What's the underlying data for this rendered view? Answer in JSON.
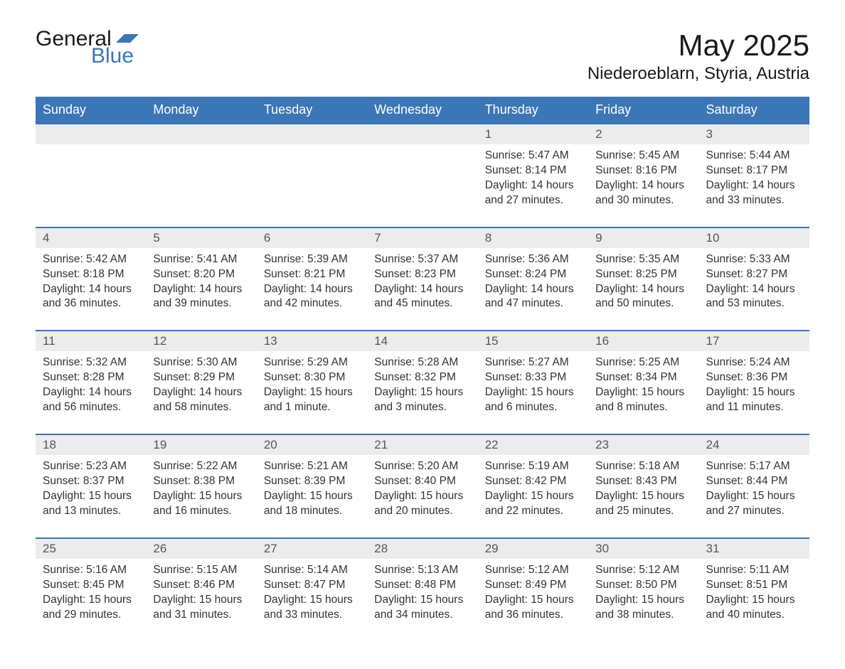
{
  "logo": {
    "text1": "General",
    "text2": "Blue"
  },
  "title": {
    "month": "May 2025",
    "location": "Niederoeblarn, Styria, Austria"
  },
  "colors": {
    "header_bg": "#3b76b7",
    "header_text": "#ffffff",
    "date_row_bg": "#ececec",
    "text": "#333333",
    "logo_blue": "#3b76b7"
  },
  "weekdays": [
    "Sunday",
    "Monday",
    "Tuesday",
    "Wednesday",
    "Thursday",
    "Friday",
    "Saturday"
  ],
  "weeks": [
    {
      "days": [
        {
          "date": "",
          "sunrise": "",
          "sunset": "",
          "daylight": ""
        },
        {
          "date": "",
          "sunrise": "",
          "sunset": "",
          "daylight": ""
        },
        {
          "date": "",
          "sunrise": "",
          "sunset": "",
          "daylight": ""
        },
        {
          "date": "",
          "sunrise": "",
          "sunset": "",
          "daylight": ""
        },
        {
          "date": "1",
          "sunrise": "Sunrise: 5:47 AM",
          "sunset": "Sunset: 8:14 PM",
          "daylight": "Daylight: 14 hours and 27 minutes."
        },
        {
          "date": "2",
          "sunrise": "Sunrise: 5:45 AM",
          "sunset": "Sunset: 8:16 PM",
          "daylight": "Daylight: 14 hours and 30 minutes."
        },
        {
          "date": "3",
          "sunrise": "Sunrise: 5:44 AM",
          "sunset": "Sunset: 8:17 PM",
          "daylight": "Daylight: 14 hours and 33 minutes."
        }
      ]
    },
    {
      "days": [
        {
          "date": "4",
          "sunrise": "Sunrise: 5:42 AM",
          "sunset": "Sunset: 8:18 PM",
          "daylight": "Daylight: 14 hours and 36 minutes."
        },
        {
          "date": "5",
          "sunrise": "Sunrise: 5:41 AM",
          "sunset": "Sunset: 8:20 PM",
          "daylight": "Daylight: 14 hours and 39 minutes."
        },
        {
          "date": "6",
          "sunrise": "Sunrise: 5:39 AM",
          "sunset": "Sunset: 8:21 PM",
          "daylight": "Daylight: 14 hours and 42 minutes."
        },
        {
          "date": "7",
          "sunrise": "Sunrise: 5:37 AM",
          "sunset": "Sunset: 8:23 PM",
          "daylight": "Daylight: 14 hours and 45 minutes."
        },
        {
          "date": "8",
          "sunrise": "Sunrise: 5:36 AM",
          "sunset": "Sunset: 8:24 PM",
          "daylight": "Daylight: 14 hours and 47 minutes."
        },
        {
          "date": "9",
          "sunrise": "Sunrise: 5:35 AM",
          "sunset": "Sunset: 8:25 PM",
          "daylight": "Daylight: 14 hours and 50 minutes."
        },
        {
          "date": "10",
          "sunrise": "Sunrise: 5:33 AM",
          "sunset": "Sunset: 8:27 PM",
          "daylight": "Daylight: 14 hours and 53 minutes."
        }
      ]
    },
    {
      "days": [
        {
          "date": "11",
          "sunrise": "Sunrise: 5:32 AM",
          "sunset": "Sunset: 8:28 PM",
          "daylight": "Daylight: 14 hours and 56 minutes."
        },
        {
          "date": "12",
          "sunrise": "Sunrise: 5:30 AM",
          "sunset": "Sunset: 8:29 PM",
          "daylight": "Daylight: 14 hours and 58 minutes."
        },
        {
          "date": "13",
          "sunrise": "Sunrise: 5:29 AM",
          "sunset": "Sunset: 8:30 PM",
          "daylight": "Daylight: 15 hours and 1 minute."
        },
        {
          "date": "14",
          "sunrise": "Sunrise: 5:28 AM",
          "sunset": "Sunset: 8:32 PM",
          "daylight": "Daylight: 15 hours and 3 minutes."
        },
        {
          "date": "15",
          "sunrise": "Sunrise: 5:27 AM",
          "sunset": "Sunset: 8:33 PM",
          "daylight": "Daylight: 15 hours and 6 minutes."
        },
        {
          "date": "16",
          "sunrise": "Sunrise: 5:25 AM",
          "sunset": "Sunset: 8:34 PM",
          "daylight": "Daylight: 15 hours and 8 minutes."
        },
        {
          "date": "17",
          "sunrise": "Sunrise: 5:24 AM",
          "sunset": "Sunset: 8:36 PM",
          "daylight": "Daylight: 15 hours and 11 minutes."
        }
      ]
    },
    {
      "days": [
        {
          "date": "18",
          "sunrise": "Sunrise: 5:23 AM",
          "sunset": "Sunset: 8:37 PM",
          "daylight": "Daylight: 15 hours and 13 minutes."
        },
        {
          "date": "19",
          "sunrise": "Sunrise: 5:22 AM",
          "sunset": "Sunset: 8:38 PM",
          "daylight": "Daylight: 15 hours and 16 minutes."
        },
        {
          "date": "20",
          "sunrise": "Sunrise: 5:21 AM",
          "sunset": "Sunset: 8:39 PM",
          "daylight": "Daylight: 15 hours and 18 minutes."
        },
        {
          "date": "21",
          "sunrise": "Sunrise: 5:20 AM",
          "sunset": "Sunset: 8:40 PM",
          "daylight": "Daylight: 15 hours and 20 minutes."
        },
        {
          "date": "22",
          "sunrise": "Sunrise: 5:19 AM",
          "sunset": "Sunset: 8:42 PM",
          "daylight": "Daylight: 15 hours and 22 minutes."
        },
        {
          "date": "23",
          "sunrise": "Sunrise: 5:18 AM",
          "sunset": "Sunset: 8:43 PM",
          "daylight": "Daylight: 15 hours and 25 minutes."
        },
        {
          "date": "24",
          "sunrise": "Sunrise: 5:17 AM",
          "sunset": "Sunset: 8:44 PM",
          "daylight": "Daylight: 15 hours and 27 minutes."
        }
      ]
    },
    {
      "days": [
        {
          "date": "25",
          "sunrise": "Sunrise: 5:16 AM",
          "sunset": "Sunset: 8:45 PM",
          "daylight": "Daylight: 15 hours and 29 minutes."
        },
        {
          "date": "26",
          "sunrise": "Sunrise: 5:15 AM",
          "sunset": "Sunset: 8:46 PM",
          "daylight": "Daylight: 15 hours and 31 minutes."
        },
        {
          "date": "27",
          "sunrise": "Sunrise: 5:14 AM",
          "sunset": "Sunset: 8:47 PM",
          "daylight": "Daylight: 15 hours and 33 minutes."
        },
        {
          "date": "28",
          "sunrise": "Sunrise: 5:13 AM",
          "sunset": "Sunset: 8:48 PM",
          "daylight": "Daylight: 15 hours and 34 minutes."
        },
        {
          "date": "29",
          "sunrise": "Sunrise: 5:12 AM",
          "sunset": "Sunset: 8:49 PM",
          "daylight": "Daylight: 15 hours and 36 minutes."
        },
        {
          "date": "30",
          "sunrise": "Sunrise: 5:12 AM",
          "sunset": "Sunset: 8:50 PM",
          "daylight": "Daylight: 15 hours and 38 minutes."
        },
        {
          "date": "31",
          "sunrise": "Sunrise: 5:11 AM",
          "sunset": "Sunset: 8:51 PM",
          "daylight": "Daylight: 15 hours and 40 minutes."
        }
      ]
    }
  ]
}
